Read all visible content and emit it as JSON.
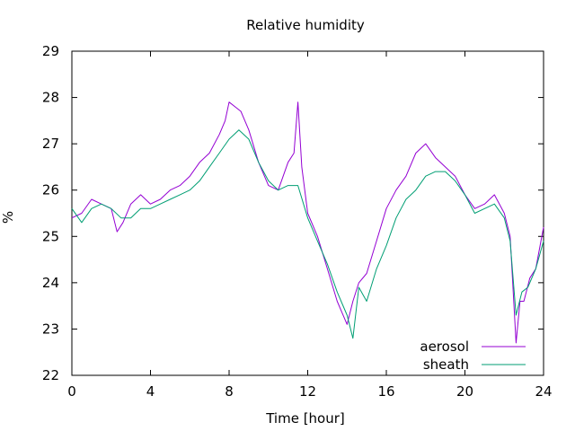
{
  "chart_data": {
    "type": "line",
    "title": "Relative humidity",
    "xlabel": "Time [hour]",
    "ylabel": "%",
    "xlim": [
      0,
      24
    ],
    "ylim": [
      22,
      29
    ],
    "xticks": [
      "0",
      "4",
      "8",
      "12",
      "16",
      "20",
      "24"
    ],
    "yticks": [
      "22",
      "23",
      "24",
      "25",
      "26",
      "27",
      "28",
      "29"
    ],
    "grid": false,
    "legend_position": "bottom-right",
    "series": [
      {
        "name": "aerosol",
        "color": "#9400d3",
        "x": [
          0,
          0.5,
          1,
          1.5,
          2,
          2.3,
          2.6,
          3,
          3.5,
          4,
          4.5,
          5,
          5.5,
          6,
          6.5,
          7,
          7.5,
          7.8,
          8,
          8.3,
          8.6,
          9,
          9.5,
          10,
          10.5,
          11,
          11.3,
          11.5,
          11.7,
          12,
          12.5,
          13,
          13.5,
          14,
          14.3,
          14.6,
          15,
          15.5,
          16,
          16.5,
          17,
          17.5,
          18,
          18.5,
          19,
          19.5,
          20,
          20.5,
          21,
          21.5,
          22,
          22.3,
          22.6,
          22.8,
          23,
          23.3,
          23.6,
          24
        ],
        "y": [
          25.4,
          25.5,
          25.8,
          25.7,
          25.6,
          25.1,
          25.3,
          25.7,
          25.9,
          25.7,
          25.8,
          26.0,
          26.1,
          26.3,
          26.6,
          26.8,
          27.2,
          27.5,
          27.9,
          27.8,
          27.7,
          27.3,
          26.6,
          26.1,
          26.0,
          26.6,
          26.8,
          27.9,
          26.5,
          25.5,
          25.0,
          24.3,
          23.6,
          23.1,
          23.6,
          24.0,
          24.2,
          24.9,
          25.6,
          26.0,
          26.3,
          26.8,
          27.0,
          26.7,
          26.5,
          26.3,
          25.9,
          25.6,
          25.7,
          25.9,
          25.5,
          25.0,
          22.7,
          23.6,
          23.6,
          24.1,
          24.3,
          25.2
        ]
      },
      {
        "name": "sheath",
        "color": "#009e73",
        "x": [
          0,
          0.5,
          1,
          1.5,
          2,
          2.5,
          3,
          3.5,
          4,
          4.5,
          5,
          5.5,
          6,
          6.5,
          7,
          7.5,
          8,
          8.5,
          9,
          9.5,
          10,
          10.5,
          11,
          11.5,
          12,
          12.5,
          13,
          13.5,
          14,
          14.3,
          14.6,
          15,
          15.5,
          16,
          16.5,
          17,
          17.5,
          18,
          18.5,
          19,
          19.5,
          20,
          20.5,
          21,
          21.5,
          22,
          22.3,
          22.6,
          22.9,
          23.2,
          23.6,
          24
        ],
        "y": [
          25.6,
          25.3,
          25.6,
          25.7,
          25.6,
          25.4,
          25.4,
          25.6,
          25.6,
          25.7,
          25.8,
          25.9,
          26.0,
          26.2,
          26.5,
          26.8,
          27.1,
          27.3,
          27.1,
          26.6,
          26.2,
          26.0,
          26.1,
          26.1,
          25.4,
          24.9,
          24.4,
          23.8,
          23.3,
          22.8,
          23.9,
          23.6,
          24.3,
          24.8,
          25.4,
          25.8,
          26.0,
          26.3,
          26.4,
          26.4,
          26.2,
          25.9,
          25.5,
          25.6,
          25.7,
          25.4,
          24.9,
          23.3,
          23.8,
          23.9,
          24.3,
          24.9
        ]
      }
    ]
  }
}
